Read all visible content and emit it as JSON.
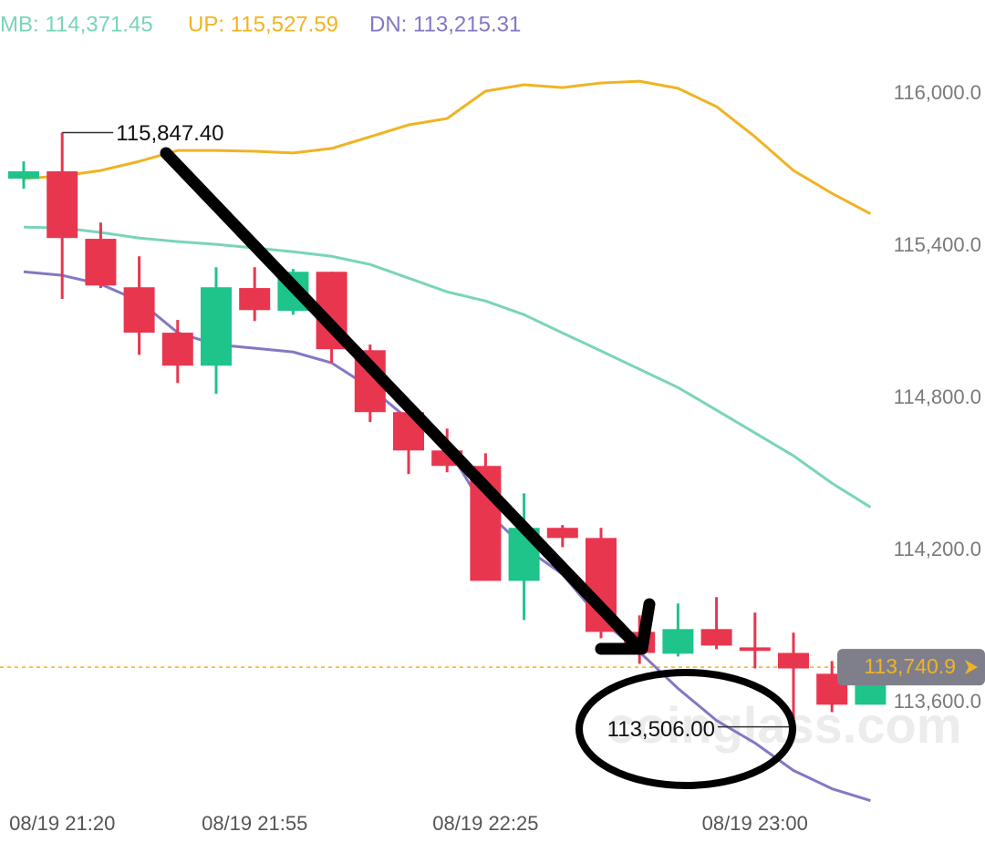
{
  "chart_data": {
    "type": "candlestick",
    "x": [
      null,
      "08/19 21:20",
      null,
      null,
      null,
      null,
      "08/19 21:55",
      null,
      null,
      null,
      null,
      null,
      "08/19 22:25",
      null,
      null,
      null,
      null,
      null,
      null,
      "08/19 23:00",
      null,
      null,
      null
    ],
    "open": [
      115666,
      115695,
      115429,
      115238,
      115059,
      114929,
      115235,
      115145,
      115299,
      114990,
      114746,
      114595,
      114534,
      114081,
      114290,
      114250,
      113880,
      113794,
      113891,
      113819,
      113797,
      113715,
      113593
    ],
    "high": [
      115734,
      115847.4,
      115493,
      115360,
      115109,
      115317,
      115317,
      115310,
      115299,
      115012,
      114746,
      114681,
      114584,
      114426,
      114301,
      114290,
      113945,
      113992,
      114017,
      113956,
      113877,
      113765,
      113754
    ],
    "low": [
      115626,
      115192,
      115235,
      114972,
      114861,
      114818,
      115105,
      115130,
      114940,
      114707,
      114502,
      114509,
      114081,
      113927,
      114214,
      113855,
      113754,
      113783,
      113812,
      113736,
      113506,
      113564,
      113600
    ],
    "close": [
      115695,
      115432,
      115245,
      115059,
      114929,
      115238,
      115148,
      115299,
      114994,
      114746,
      114595,
      114534,
      114081,
      114290,
      114250,
      113880,
      113797,
      113891,
      113826,
      113805,
      113736,
      113593,
      113740.9
    ],
    "up_color": "#1ec48a",
    "down_color": "#e8364f",
    "series": [
      {
        "name": "MB: 114,371.45",
        "color": "#79d4bb",
        "values": [
          115475,
          115472,
          115454,
          115432,
          115418,
          115407,
          115393,
          115378,
          115360,
          115328,
          115274,
          115220,
          115184,
          115130,
          115058,
          114987,
          114915,
          114843,
          114754,
          114664,
          114574,
          114466,
          114371.45
        ]
      },
      {
        "name": "UP: 115,527.59",
        "color": "#f0b323",
        "values": [
          115666,
          115677,
          115698,
          115734,
          115777,
          115777,
          115774,
          115767,
          115785,
          115831,
          115878,
          115903,
          116011,
          116036,
          116025,
          116043,
          116050,
          116022,
          115950,
          115831,
          115698,
          115608,
          115527.59
        ]
      },
      {
        "name": "DN: 113,215.31",
        "color": "#8577c4",
        "values": [
          115299,
          115285,
          115250,
          115184,
          115059,
          115012,
          114998,
          114983,
          114940,
          114843,
          114717,
          114610,
          114358,
          114214,
          114107,
          113927,
          113801,
          113657,
          113531,
          113442,
          113334,
          113262,
          113215.31
        ]
      }
    ],
    "ylim": [
      113210,
      116370
    ],
    "yticks": [
      {
        "value": 116000,
        "label": "116,000.0"
      },
      {
        "value": 115400,
        "label": "115,400.0"
      },
      {
        "value": 114800,
        "label": "114,800.0"
      },
      {
        "value": 114200,
        "label": "114,200.0"
      },
      {
        "value": 113600,
        "label": "113,600.0"
      }
    ],
    "current_price": {
      "value": 113740.9,
      "label": "113,740.9"
    },
    "annotations": [
      {
        "value": 115847.4,
        "text": "115,847.40"
      },
      {
        "value": 113506,
        "text": "113,506.00"
      }
    ],
    "watermark": "coinglass.com"
  }
}
